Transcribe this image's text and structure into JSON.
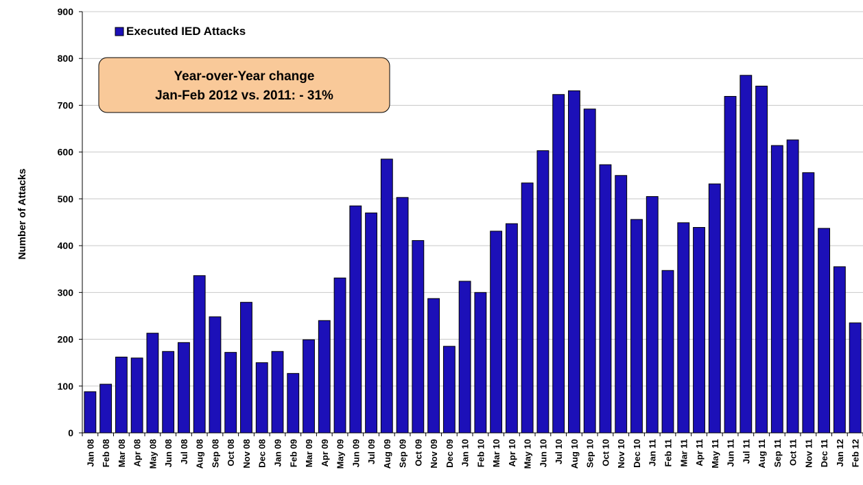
{
  "chart_data": {
    "type": "bar",
    "title": "",
    "xlabel": "",
    "ylabel": "Number of Attacks",
    "ylim": [
      0,
      900
    ],
    "yticks": [
      0,
      100,
      200,
      300,
      400,
      500,
      600,
      700,
      800,
      900
    ],
    "grid": true,
    "legend": {
      "position": "top-left",
      "entries": [
        "Executed IED Attacks"
      ]
    },
    "annotation": {
      "line1": "Year-over-Year change",
      "line2": "Jan-Feb 2012 vs. 2011:  - 31%"
    },
    "colors": {
      "bar": "#1c10b8",
      "bar_stroke": "#000000",
      "annotation_fill": "#f9c999",
      "grid": "#c8c8c8"
    },
    "categories": [
      "Jan 08",
      "Feb 08",
      "Mar 08",
      "Apr 08",
      "May 08",
      "Jun 08",
      "Jul 08",
      "Aug 08",
      "Sep 08",
      "Oct 08",
      "Nov 08",
      "Dec 08",
      "Jan 09",
      "Feb 09",
      "Mar 09",
      "Apr 09",
      "May 09",
      "Jun 09",
      "Jul 09",
      "Aug 09",
      "Sep 09",
      "Oct 09",
      "Nov 09",
      "Dec 09",
      "Jan 10",
      "Feb 10",
      "Mar 10",
      "Apr 10",
      "May 10",
      "Jun 10",
      "Jul 10",
      "Aug 10",
      "Sep 10",
      "Oct 10",
      "Nov 10",
      "Dec 10",
      "Jan 11",
      "Feb 11",
      "Mar 11",
      "Apr 11",
      "May 11",
      "Jun 11",
      "Jul 11",
      "Aug 11",
      "Sep 11",
      "Oct 11",
      "Nov 11",
      "Dec 11",
      "Jan 12",
      "Feb 12"
    ],
    "series": [
      {
        "name": "Executed IED Attacks",
        "values": [
          88,
          104,
          162,
          160,
          213,
          174,
          193,
          336,
          248,
          172,
          279,
          150,
          174,
          127,
          199,
          240,
          331,
          485,
          470,
          585,
          503,
          411,
          287,
          185,
          324,
          300,
          431,
          447,
          534,
          603,
          723,
          731,
          692,
          573,
          550,
          456,
          505,
          347,
          449,
          439,
          532,
          719,
          764,
          741,
          614,
          626,
          556,
          437,
          355,
          235
        ]
      }
    ]
  }
}
